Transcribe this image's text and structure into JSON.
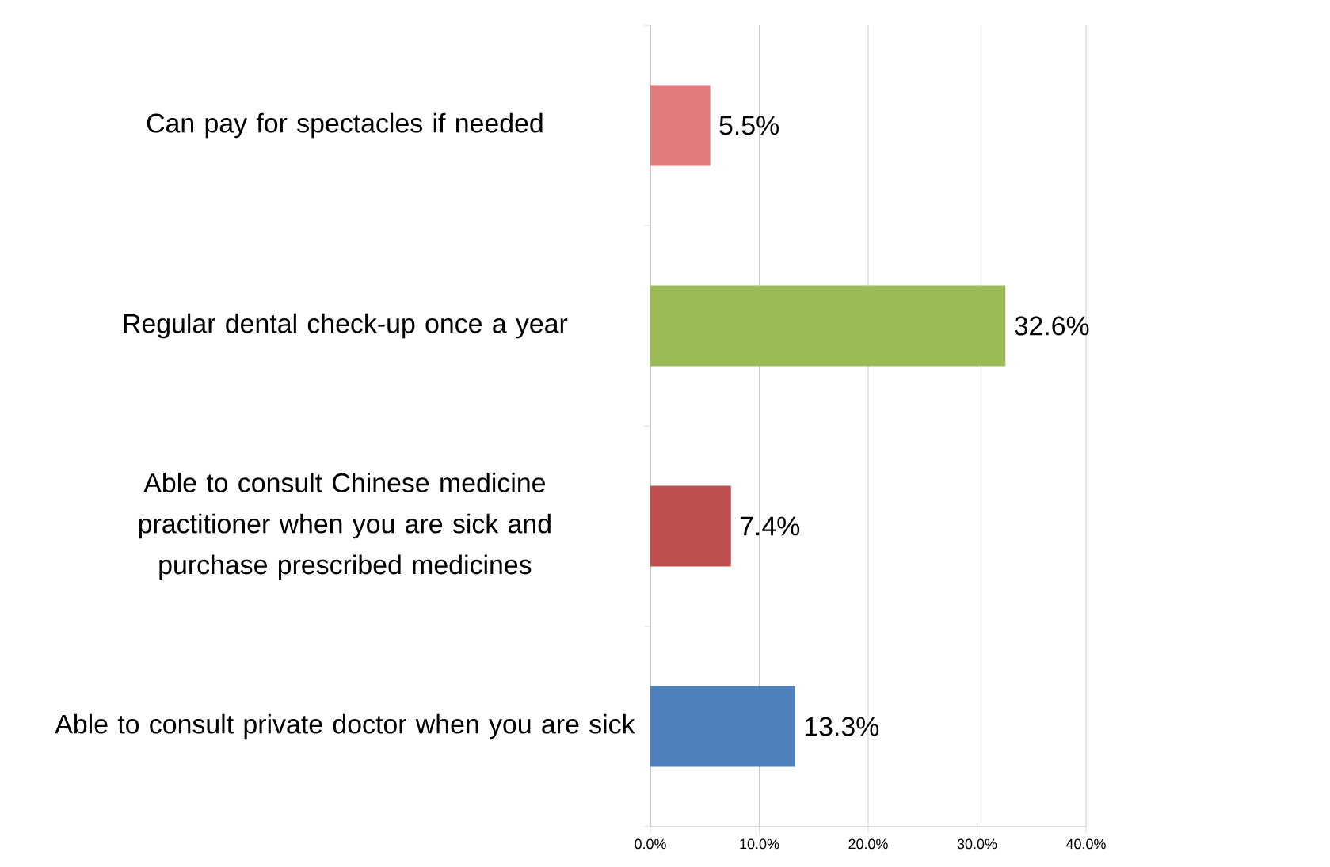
{
  "chart_data": {
    "type": "bar",
    "orientation": "horizontal",
    "categories": [
      "Can pay for spectacles if needed",
      "Regular dental check-up once a year",
      "Able to consult Chinese medicine practitioner when you are sick and purchase prescribed medicines",
      "Able to consult private doctor when you are sick"
    ],
    "values": [
      5.5,
      32.6,
      7.4,
      13.3
    ],
    "colors": [
      "#e07b7b",
      "#9bbb59",
      "#c0504d",
      "#4f81bd"
    ],
    "value_labels": [
      "5.5%",
      "32.6%",
      "7.4%",
      "13.3%"
    ],
    "xlim": [
      0,
      40
    ],
    "xticks": [
      {
        "value": 0,
        "label": "0.0%"
      },
      {
        "value": 10,
        "label": "10.0%"
      },
      {
        "value": 20,
        "label": "20.0%"
      },
      {
        "value": 30,
        "label": "30.0%"
      },
      {
        "value": 40,
        "label": "40.0%"
      }
    ],
    "grid": "x"
  }
}
